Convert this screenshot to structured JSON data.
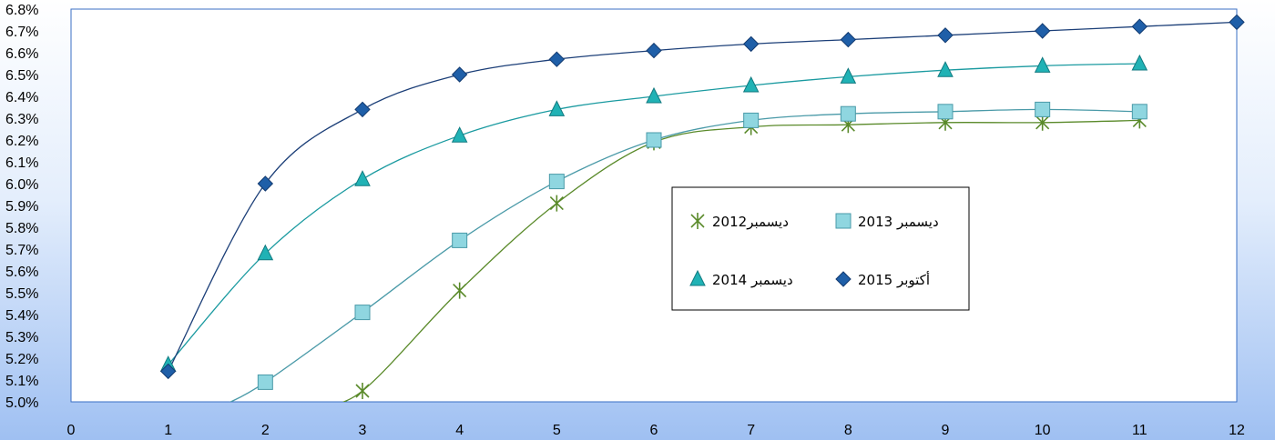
{
  "chart_data": {
    "type": "line",
    "title": "",
    "xlabel": "",
    "ylabel": "",
    "xlim": [
      0,
      12
    ],
    "ylim": [
      0.05,
      0.068
    ],
    "x_ticks": [
      "0",
      "1",
      "2",
      "3",
      "4",
      "5",
      "6",
      "7",
      "8",
      "9",
      "10",
      "11",
      "12"
    ],
    "y_ticks": [
      "5.0%",
      "5.1%",
      "5.2%",
      "5.3%",
      "5.4%",
      "5.5%",
      "5.6%",
      "5.7%",
      "5.8%",
      "5.9%",
      "6.0%",
      "6.1%",
      "6.2%",
      "6.3%",
      "6.4%",
      "6.5%",
      "6.6%",
      "6.7%",
      "6.8%"
    ],
    "grid": false,
    "legend_position": "center-right",
    "series": [
      {
        "name": "ديسمبر2012",
        "marker": "star",
        "color": "#5a8a2a",
        "x": [
          3,
          4,
          5,
          6,
          7,
          8,
          9,
          10,
          11
        ],
        "values": [
          0.0505,
          0.0551,
          0.0591,
          0.0619,
          0.0626,
          0.0627,
          0.0628,
          0.0628,
          0.0629
        ]
      },
      {
        "name": "ديسمبر 2013",
        "marker": "square",
        "color": "#8fd6e0",
        "line_color": "#4a9aa8",
        "x": [
          2,
          3,
          4,
          5,
          6,
          7,
          8,
          9,
          10,
          11
        ],
        "values": [
          0.0509,
          0.0541,
          0.0574,
          0.0601,
          0.062,
          0.0629,
          0.0632,
          0.0633,
          0.0634,
          0.0633
        ]
      },
      {
        "name": "ديسمبر 2014",
        "marker": "triangle",
        "color": "#20b2b5",
        "line_color": "#1a9aa0",
        "x": [
          1,
          2,
          3,
          4,
          5,
          6,
          7,
          8,
          9,
          10,
          11
        ],
        "values": [
          0.0517,
          0.0568,
          0.0602,
          0.0622,
          0.0634,
          0.064,
          0.0645,
          0.0649,
          0.0652,
          0.0654,
          0.0655
        ]
      },
      {
        "name": "أكتوبر 2015",
        "marker": "diamond",
        "color": "#1f5fa8",
        "line_color": "#1c3f78",
        "x": [
          1,
          2,
          3,
          4,
          5,
          6,
          7,
          8,
          9,
          10,
          11,
          12
        ],
        "values": [
          0.0514,
          0.06,
          0.0634,
          0.065,
          0.0657,
          0.0661,
          0.0664,
          0.0666,
          0.0668,
          0.067,
          0.0672,
          0.0674
        ]
      }
    ]
  }
}
